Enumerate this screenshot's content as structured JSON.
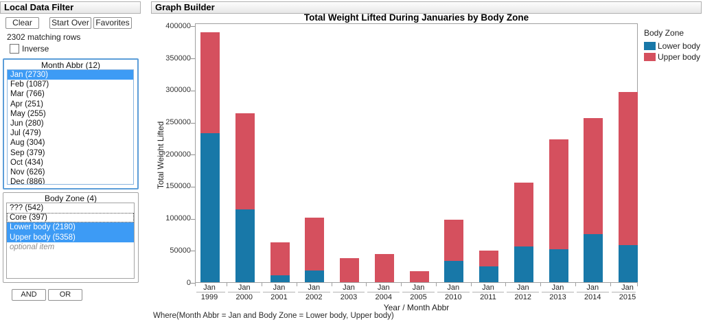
{
  "filter_panel": {
    "title": "Local Data Filter",
    "clear_button": "Clear",
    "start_over_button": "Start Over",
    "favorites_button": "Favorites",
    "matching_rows": "2302 matching rows",
    "inverse_label": "Inverse",
    "inverse_checked": false,
    "month_group": {
      "title": "Month Abbr (12)",
      "items": [
        {
          "label": "Jan (2730)",
          "selected": true
        },
        {
          "label": "Feb (1087)",
          "selected": false
        },
        {
          "label": "Mar (766)",
          "selected": false
        },
        {
          "label": "Apr (251)",
          "selected": false
        },
        {
          "label": "May (255)",
          "selected": false
        },
        {
          "label": "Jun (280)",
          "selected": false
        },
        {
          "label": "Jul (479)",
          "selected": false
        },
        {
          "label": "Aug (304)",
          "selected": false
        },
        {
          "label": "Sep (379)",
          "selected": false
        },
        {
          "label": "Oct (434)",
          "selected": false
        },
        {
          "label": "Nov (626)",
          "selected": false
        },
        {
          "label": "Dec (886)",
          "selected": false
        }
      ]
    },
    "body_zone_group": {
      "title": "Body Zone (4)",
      "items": [
        {
          "label": "??? (542)",
          "selected": false
        },
        {
          "label": "Core (397)",
          "selected": false,
          "focused": true
        },
        {
          "label": "Lower body (2180)",
          "selected": true
        },
        {
          "label": "Upper body (5358)",
          "selected": true
        },
        {
          "label": "optional item",
          "selected": false,
          "optional": true
        }
      ]
    },
    "and_button": "AND",
    "or_button": "OR"
  },
  "graph_panel": {
    "title": "Graph Builder",
    "footer": "Where(Month Abbr = Jan and Body Zone = Lower body, Upper body)"
  },
  "chart_data": {
    "type": "bar",
    "stacked": true,
    "title": "Total Weight Lifted During Januaries by Body Zone",
    "xlabel": "Year / Month Abbr",
    "ylabel": "Total Weight Lifted",
    "ylim": [
      0,
      400000
    ],
    "ytick_step": 50000,
    "grid": false,
    "legend_title": "Body Zone",
    "legend_position": "right",
    "categories": [
      "1999",
      "2000",
      "2001",
      "2002",
      "2003",
      "2004",
      "2005",
      "2010",
      "2011",
      "2012",
      "2013",
      "2014",
      "2015"
    ],
    "category_sub_label": "Jan",
    "series": [
      {
        "name": "Lower body",
        "color": "#1878a8",
        "values": [
          232000,
          114000,
          11000,
          18000,
          0,
          0,
          0,
          33000,
          25000,
          56000,
          51000,
          75000,
          58000
        ]
      },
      {
        "name": "Upper body",
        "color": "#d5505e",
        "values": [
          158000,
          149000,
          51000,
          83000,
          38000,
          44000,
          17000,
          64000,
          24000,
          99000,
          172000,
          181000,
          239000
        ]
      }
    ]
  }
}
